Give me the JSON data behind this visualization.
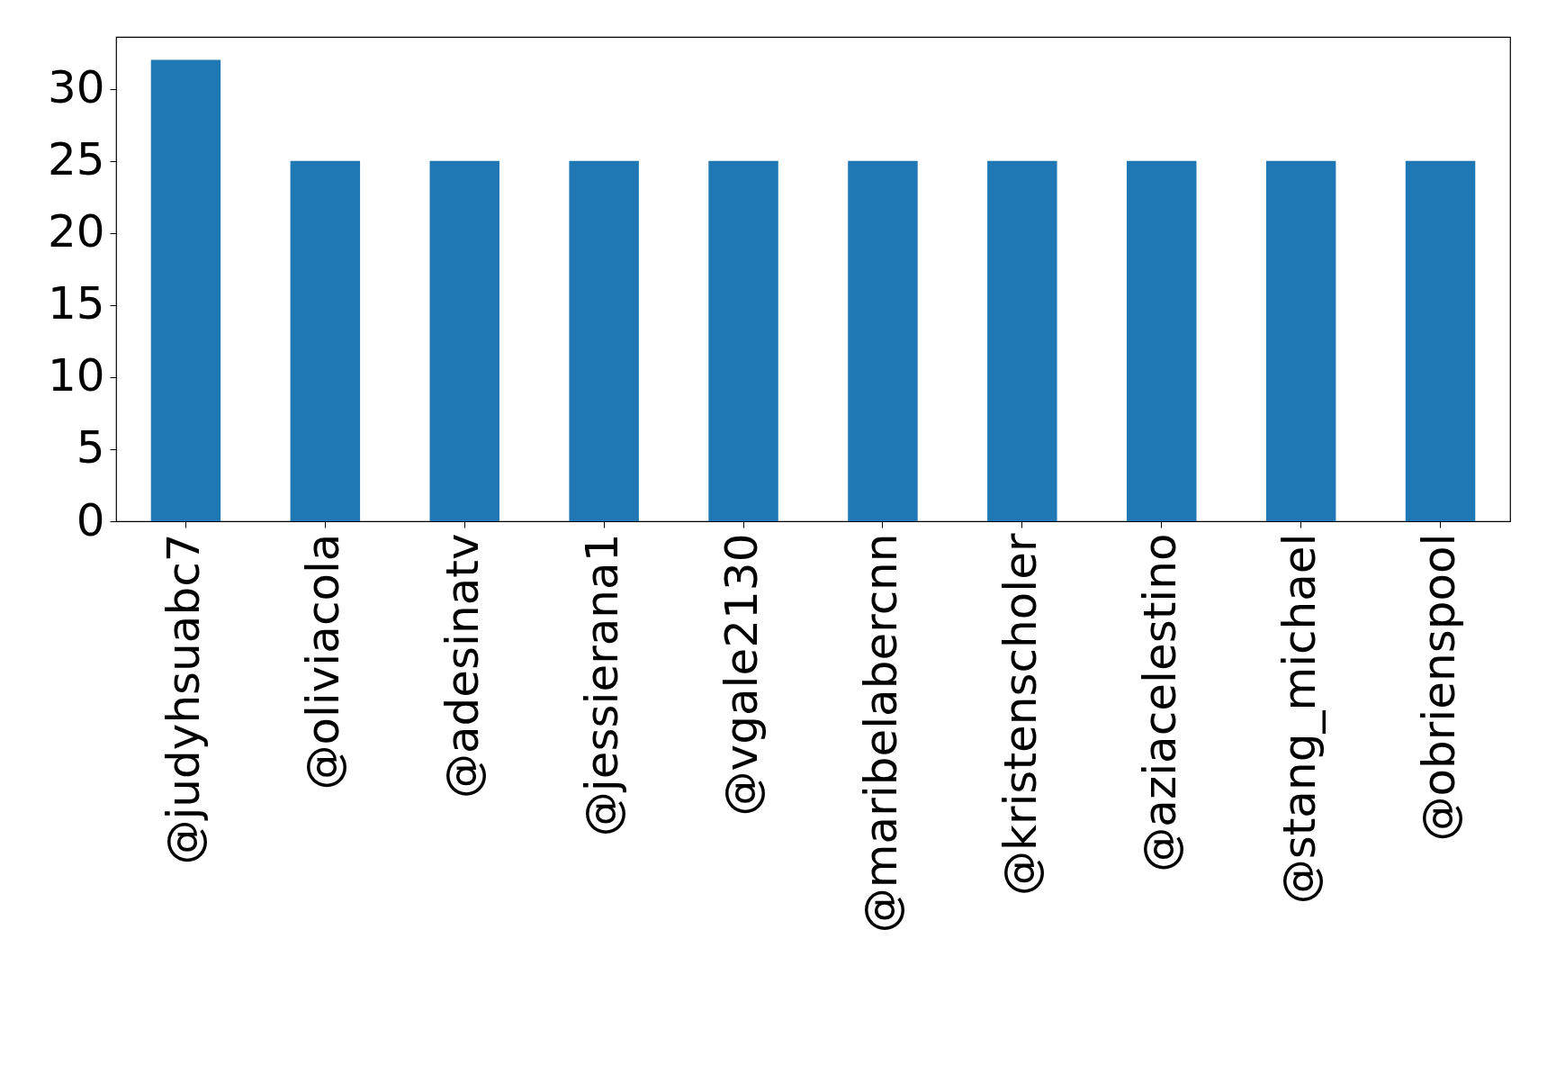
{
  "chart_data": {
    "type": "bar",
    "categories": [
      "@judyhsuabc7",
      "@oliviacola",
      "@adesinatv",
      "@jessierana1",
      "@vgale2130",
      "@maribelabercnn",
      "@kristenscholer",
      "@aziacelestino",
      "@stang_michael",
      "@obrienspool"
    ],
    "values": [
      32,
      25,
      25,
      25,
      25,
      25,
      25,
      25,
      25,
      25
    ],
    "color": "#1f77b4",
    "ylim": [
      0,
      33.6
    ],
    "yticks": [
      0,
      5,
      10,
      15,
      20,
      25,
      30
    ],
    "grid": false
  }
}
